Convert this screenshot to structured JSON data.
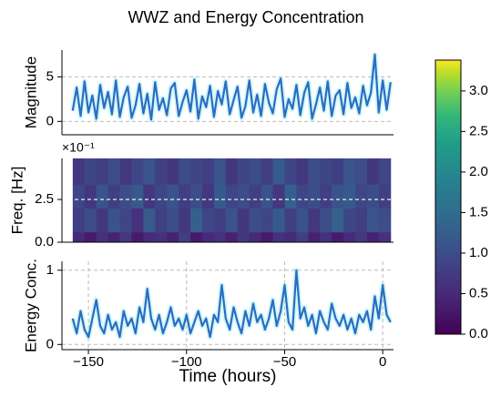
{
  "chart_data": [
    {
      "type": "line",
      "title": "WWZ and Energy Concentration",
      "ylabel": "Magnitude",
      "x": [
        -158,
        -156,
        -154,
        -152,
        -150,
        -148,
        -146,
        -144,
        -142,
        -140,
        -138,
        -136,
        -134,
        -132,
        -130,
        -128,
        -126,
        -124,
        -122,
        -120,
        -118,
        -116,
        -114,
        -112,
        -110,
        -108,
        -106,
        -104,
        -102,
        -100,
        -98,
        -96,
        -94,
        -92,
        -90,
        -88,
        -86,
        -84,
        -82,
        -80,
        -78,
        -76,
        -74,
        -72,
        -70,
        -68,
        -66,
        -64,
        -62,
        -60,
        -58,
        -56,
        -54,
        -52,
        -50,
        -48,
        -46,
        -44,
        -42,
        -40,
        -38,
        -36,
        -34,
        -32,
        -30,
        -28,
        -26,
        -24,
        -22,
        -20,
        -18,
        -16,
        -14,
        -12,
        -10,
        -8,
        -6,
        -4,
        -2,
        0,
        2,
        4
      ],
      "series": [
        {
          "color": "#2b6cc4",
          "values": [
            1.2,
            3.8,
            0.6,
            4.5,
            1.0,
            2.9,
            0.3,
            4.1,
            1.5,
            3.3,
            0.8,
            4.6,
            0.5,
            2.7,
            3.9,
            0.4,
            1.8,
            4.2,
            0.9,
            3.1,
            0.2,
            4.4,
            1.3,
            2.6,
            0.7,
            3.7,
            4.3,
            0.6,
            2.2,
            3.5,
            1.1,
            4.7,
            0.3,
            2.8,
            1.6,
            4.0,
            0.5,
            3.4,
            1.9,
            4.5,
            0.8,
            2.4,
            3.9,
            0.4,
            1.7,
            4.6,
            1.0,
            3.0,
            0.6,
            4.2,
            2.1,
            0.9,
            3.6,
            4.8,
            0.5,
            2.5,
            1.4,
            4.1,
            0.7,
            3.2,
            4.4,
            0.3,
            1.9,
            3.8,
            1.2,
            4.5,
            0.6,
            2.9,
            3.5,
            0.8,
            4.3,
            1.5,
            2.7,
            0.9,
            4.0,
            1.8,
            3.2,
            7.5,
            1.0,
            4.6,
            1.3,
            4.4
          ]
        }
      ],
      "xlim": [
        -163.5,
        5.5
      ],
      "ylim": [
        -1.5,
        8
      ],
      "yticks": [
        0,
        5
      ],
      "grid": "y"
    },
    {
      "type": "heatmap",
      "ylabel": "Freq. [Hz]",
      "offset_text": "×10⁻¹",
      "xedges": [
        -158,
        -152,
        -146,
        -140,
        -134,
        -128,
        -122,
        -116,
        -110,
        -104,
        -98,
        -92,
        -86,
        -80,
        -74,
        -68,
        -62,
        -56,
        -50,
        -44,
        -38,
        -32,
        -26,
        -20,
        -14,
        -8,
        -2,
        4
      ],
      "yedges": [
        0,
        0.6,
        2.0,
        3.4,
        4.9
      ],
      "z": [
        [
          0.5,
          0.3,
          0.6,
          0.4,
          0.7,
          0.3,
          0.5,
          0.6,
          0.4,
          0.8,
          0.3,
          0.5,
          0.6,
          0.4,
          0.7,
          0.5,
          0.3,
          0.6,
          0.5,
          0.8,
          0.4,
          0.6,
          0.3,
          0.5,
          0.7,
          0.4,
          0.6
        ],
        [
          0.8,
          1.0,
          0.7,
          1.1,
          0.9,
          0.6,
          1.2,
          0.8,
          1.0,
          0.7,
          1.3,
          0.9,
          0.8,
          1.1,
          0.7,
          1.0,
          0.9,
          1.2,
          0.8,
          1.1,
          0.7,
          1.0,
          1.3,
          0.9,
          0.8,
          1.1,
          1.0
        ],
        [
          0.9,
          0.7,
          1.1,
          0.8,
          1.0,
          1.2,
          0.7,
          0.9,
          1.1,
          0.8,
          1.0,
          0.7,
          1.2,
          0.9,
          1.0,
          0.8,
          1.1,
          0.7,
          1.3,
          0.9,
          1.0,
          0.8,
          1.1,
          1.2,
          0.9,
          1.0,
          0.8
        ],
        [
          0.7,
          0.9,
          0.8,
          1.0,
          0.7,
          0.9,
          1.1,
          0.8,
          0.7,
          1.0,
          0.9,
          0.8,
          1.1,
          0.7,
          0.9,
          1.0,
          0.8,
          1.2,
          0.9,
          0.7,
          1.0,
          0.9,
          0.8,
          1.1,
          1.0,
          0.7,
          0.9
        ]
      ],
      "xlim": [
        -163.5,
        5.5
      ],
      "ylim": [
        0,
        4.9
      ],
      "yticks": [
        {
          "value": 0,
          "label": "0.0"
        },
        2.5
      ],
      "grid": "y",
      "colormap": "viridis",
      "clim": [
        0,
        3.38
      ],
      "cticks": [
        {
          "value": 0,
          "label": "0.0"
        },
        0.5,
        {
          "value": 1,
          "label": "1.0"
        },
        1.5,
        {
          "value": 2,
          "label": "2.0"
        },
        2.5,
        {
          "value": 3,
          "label": "3.0"
        }
      ]
    },
    {
      "type": "line",
      "ylabel": "Energy Conc.",
      "xlabel": "Time (hours)",
      "x": [
        -158,
        -156,
        -154,
        -152,
        -150,
        -148,
        -146,
        -144,
        -142,
        -140,
        -138,
        -136,
        -134,
        -132,
        -130,
        -128,
        -126,
        -124,
        -122,
        -120,
        -118,
        -116,
        -114,
        -112,
        -110,
        -108,
        -106,
        -104,
        -102,
        -100,
        -98,
        -96,
        -94,
        -92,
        -90,
        -88,
        -86,
        -84,
        -82,
        -80,
        -78,
        -76,
        -74,
        -72,
        -70,
        -68,
        -66,
        -64,
        -62,
        -60,
        -58,
        -56,
        -54,
        -52,
        -50,
        -48,
        -46,
        -44,
        -42,
        -40,
        -38,
        -36,
        -34,
        -32,
        -30,
        -28,
        -26,
        -24,
        -22,
        -20,
        -18,
        -16,
        -14,
        -12,
        -10,
        -8,
        -6,
        -4,
        -2,
        0,
        2,
        4
      ],
      "series": [
        {
          "color": "#2b6cc4",
          "values": [
            0.35,
            0.15,
            0.45,
            0.2,
            0.1,
            0.35,
            0.6,
            0.25,
            0.15,
            0.4,
            0.2,
            0.3,
            0.1,
            0.45,
            0.25,
            0.35,
            0.15,
            0.5,
            0.3,
            0.75,
            0.35,
            0.2,
            0.4,
            0.15,
            0.3,
            0.5,
            0.25,
            0.35,
            0.2,
            0.4,
            0.15,
            0.3,
            0.45,
            0.25,
            0.35,
            0.1,
            0.4,
            0.3,
            0.8,
            0.35,
            0.2,
            0.5,
            0.3,
            0.15,
            0.45,
            0.25,
            0.55,
            0.3,
            0.4,
            0.2,
            0.35,
            0.6,
            0.25,
            0.45,
            0.8,
            0.3,
            0.2,
            1.0,
            0.35,
            0.5,
            0.25,
            0.4,
            0.15,
            0.45,
            0.3,
            0.2,
            0.55,
            0.35,
            0.25,
            0.4,
            0.2,
            0.35,
            0.15,
            0.4,
            0.3,
            0.45,
            0.2,
            0.65,
            0.35,
            0.8,
            0.4,
            0.3
          ]
        }
      ],
      "xlim": [
        -163.5,
        5.5
      ],
      "xticks": [
        {
          "value": -150,
          "label": "−150"
        },
        {
          "value": -100,
          "label": "−100"
        },
        {
          "value": -50,
          "label": "−50"
        },
        0
      ],
      "ylim": [
        -0.07,
        1.12
      ],
      "yticks": [
        0,
        1
      ],
      "grid": "both"
    }
  ]
}
